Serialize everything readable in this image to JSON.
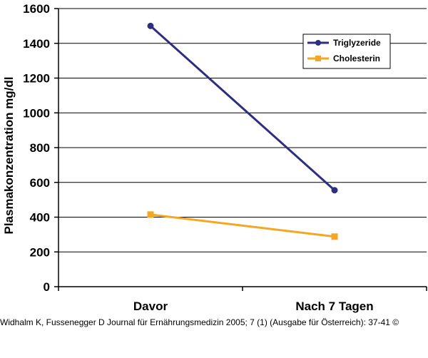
{
  "chart_data": {
    "type": "line",
    "categories": [
      "Davor",
      "Nach 7 Tagen"
    ],
    "ylabel": "Plasmakonzentration mg/dl",
    "xlabel": "",
    "ylim": [
      0,
      1600
    ],
    "yticks": [
      0,
      200,
      400,
      600,
      800,
      1000,
      1200,
      1400,
      1600
    ],
    "grid": true,
    "legend_position": "top-right",
    "series": [
      {
        "name": "Triglyzeride",
        "values": [
          1500,
          555
        ],
        "color": "#2e2e80",
        "marker": "circle"
      },
      {
        "name": "Cholesterin",
        "values": [
          415,
          288
        ],
        "color": "#f5a623",
        "marker": "square"
      }
    ]
  },
  "caption": "Widhalm K, Fussenegger D Journal für Ernährungsmedizin 2005; 7 (1) (Ausgabe für Österreich): 37-41 ©"
}
